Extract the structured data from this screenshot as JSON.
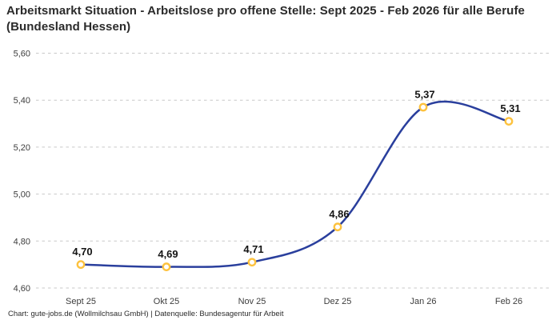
{
  "header": {
    "title": "Arbeitsmarkt Situation - Arbeitslose pro offene Stelle: Sept 2025 - Feb 2026 für alle Berufe (Bundesland Hessen)"
  },
  "chart_data": {
    "type": "line",
    "title": "Arbeitsmarkt Situation - Arbeitslose pro offene Stelle: Sept 2025 - Feb 2026 für alle Berufe (Bundesland Hessen)",
    "categories": [
      "Sept 25",
      "Okt 25",
      "Nov 25",
      "Dez 25",
      "Jan 26",
      "Feb 26"
    ],
    "values": [
      4.7,
      4.69,
      4.71,
      4.86,
      5.37,
      5.31
    ],
    "point_labels": [
      "4,70",
      "4,69",
      "4,71",
      "4,86",
      "5,37",
      "5,31"
    ],
    "xlabel": "",
    "ylabel": "",
    "ylim": [
      4.6,
      5.6
    ],
    "yticks": [
      4.6,
      4.8,
      5.0,
      5.2,
      5.4,
      5.6
    ],
    "ytick_labels": [
      "4,60",
      "4,80",
      "5,00",
      "5,20",
      "5,40",
      "5,60"
    ],
    "grid": "horizontal-dashed",
    "legend": "none",
    "line_style": "smooth-spline",
    "colors": {
      "line": "#2a3f9d",
      "marker_ring": "#fdc23e",
      "marker_fill": "#ffffff",
      "gridline": "#c9c9c9",
      "axis_text": "#3d3d3d",
      "point_label_text": "#141414",
      "title_text": "#2b2b2b"
    }
  },
  "footer": {
    "attribution": "Chart: gute-jobs.de (Wollmilchsau GmbH) | Datenquelle: Bundesagentur für Arbeit"
  }
}
